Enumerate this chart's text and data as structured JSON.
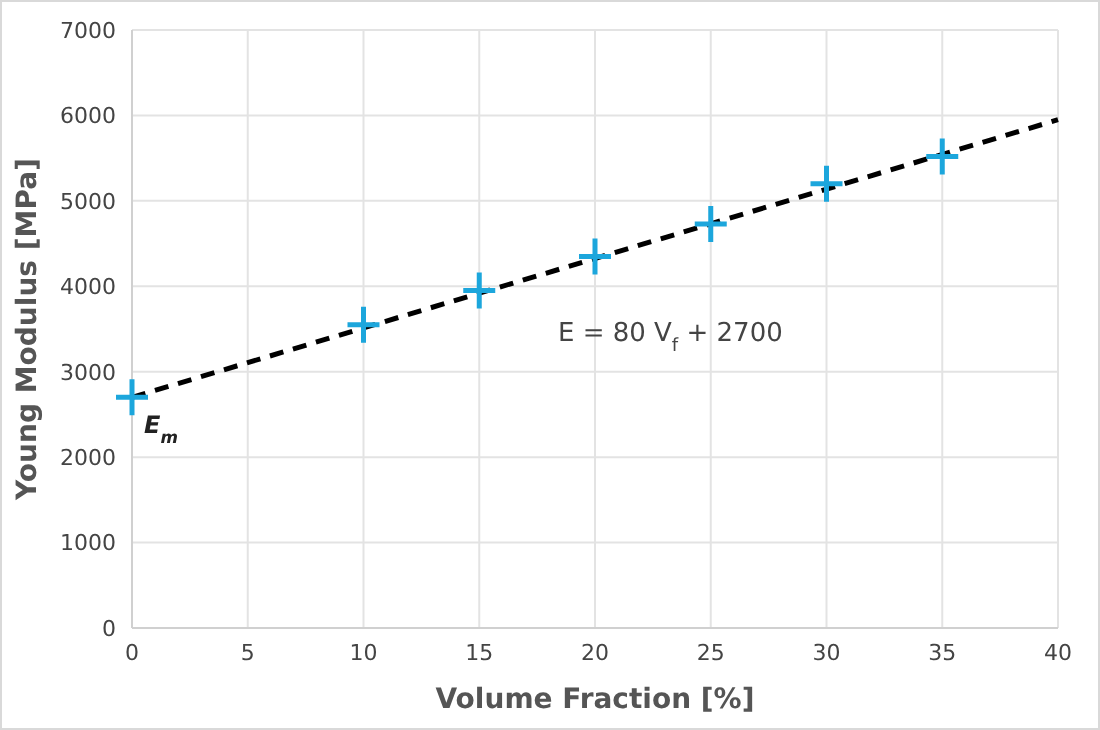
{
  "chart_data": {
    "type": "scatter",
    "xlabel": "Volume Fraction [%]",
    "ylabel": "Young Modulus [MPa]",
    "xlim": [
      0,
      40
    ],
    "xticks": [
      0,
      5,
      10,
      15,
      20,
      25,
      30,
      35,
      40
    ],
    "ylim": [
      0,
      7000
    ],
    "yticks": [
      0,
      1000,
      2000,
      3000,
      4000,
      5000,
      6000,
      7000
    ],
    "grid": true,
    "series": [
      {
        "marker": "cross",
        "color": "#1ca6dc",
        "x": [
          0,
          10,
          15,
          20,
          25,
          30,
          35
        ],
        "values": [
          2700,
          3550,
          3950,
          4350,
          4730,
          5200,
          5520
        ]
      },
      {
        "type": "line",
        "marker": "none",
        "line_style": "dashed",
        "color": "#000000",
        "x": [
          0,
          40
        ],
        "values": [
          2700,
          5950
        ]
      }
    ],
    "annotations": [
      "E = 80 V$_{f}$ + 2700",
      {
        "text": "E$_{m}$",
        "x": 0,
        "y": 2700
      }
    ]
  }
}
